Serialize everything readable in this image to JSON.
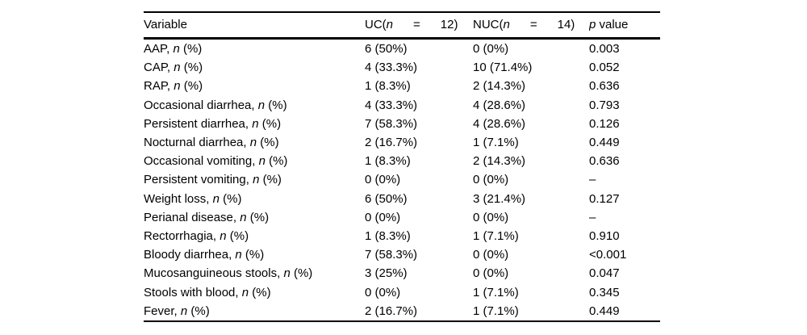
{
  "table": {
    "header": {
      "variable": "Variable",
      "uc_prefix": "UC(",
      "n_symbol": "n",
      "uc_rest": "      =      12)",
      "nuc_prefix": "NUC(",
      "nuc_rest": "      =      14)",
      "p_symbol": "p",
      "p_rest": " value"
    },
    "row_label_suffix": {
      "comma": ", ",
      "n_symbol": "n",
      "percent": " (%)"
    },
    "rows": [
      {
        "variable": "AAP",
        "uc": "6 (50%)",
        "nuc": "0 (0%)",
        "p": "0.003"
      },
      {
        "variable": "CAP",
        "uc": "4 (33.3%)",
        "nuc": "10 (71.4%)",
        "p": "0.052"
      },
      {
        "variable": "RAP",
        "uc": "1 (8.3%)",
        "nuc": "2 (14.3%)",
        "p": "0.636"
      },
      {
        "variable": "Occasional diarrhea",
        "uc": "4 (33.3%)",
        "nuc": "4 (28.6%)",
        "p": "0.793"
      },
      {
        "variable": "Persistent diarrhea",
        "uc": "7 (58.3%)",
        "nuc": "4 (28.6%)",
        "p": "0.126"
      },
      {
        "variable": "Nocturnal diarrhea",
        "uc": "2 (16.7%)",
        "nuc": "1 (7.1%)",
        "p": "0.449"
      },
      {
        "variable": "Occasional vomiting",
        "uc": "1 (8.3%)",
        "nuc": "2 (14.3%)",
        "p": "0.636"
      },
      {
        "variable": "Persistent vomiting",
        "uc": "0 (0%)",
        "nuc": "0 (0%)",
        "p": "–"
      },
      {
        "variable": "Weight loss",
        "uc": "6 (50%)",
        "nuc": "3 (21.4%)",
        "p": "0.127"
      },
      {
        "variable": "Perianal disease",
        "uc": "0 (0%)",
        "nuc": "0 (0%)",
        "p": "–"
      },
      {
        "variable": "Rectorrhagia",
        "uc": "1 (8.3%)",
        "nuc": "1 (7.1%)",
        "p": "0.910"
      },
      {
        "variable": "Bloody diarrhea",
        "uc": "7 (58.3%)",
        "nuc": "0 (0%)",
        "p": "<0.001"
      },
      {
        "variable": "Mucosanguineous stools",
        "uc": "3 (25%)",
        "nuc": "0 (0%)",
        "p": "0.047"
      },
      {
        "variable": "Stools with blood",
        "uc": "0 (0%)",
        "nuc": "1 (7.1%)",
        "p": "0.345"
      },
      {
        "variable": "Fever",
        "uc": "2 (16.7%)",
        "nuc": "1 (7.1%)",
        "p": "0.449"
      }
    ],
    "colors": {
      "text": "#000000",
      "rule": "#000000",
      "background": "#ffffff"
    }
  }
}
